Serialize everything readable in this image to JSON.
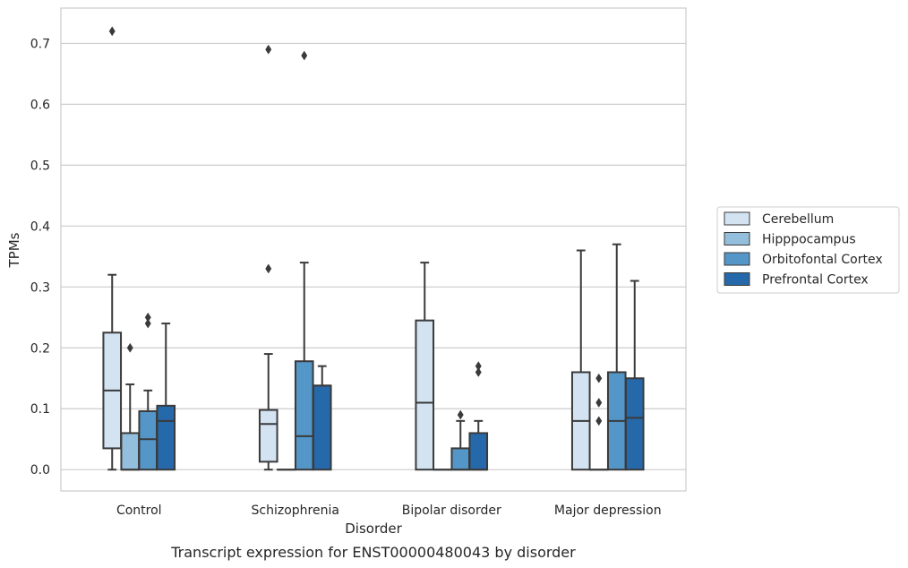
{
  "caption": "Transcript expression for ENST00000480043 by disorder",
  "chart_data": {
    "type": "box",
    "xlabel": "Disorder",
    "ylabel": "TPMs",
    "ylim": [
      -0.035,
      0.758
    ],
    "yticks": [
      0.0,
      0.1,
      0.2,
      0.3,
      0.4,
      0.5,
      0.6,
      0.7
    ],
    "ytick_labels": [
      "0.0",
      "0.1",
      "0.2",
      "0.3",
      "0.4",
      "0.5",
      "0.6",
      "0.7"
    ],
    "grid": "horizontal",
    "legend_position": "right",
    "categories": [
      "Control",
      "Schizophrenia",
      "Bipolar disorder",
      "Major depression"
    ],
    "series": [
      {
        "name": "Cerebellum",
        "color": "#d3e3f2",
        "boxes": [
          {
            "whislo": 0.0,
            "q1": 0.035,
            "med": 0.13,
            "q3": 0.225,
            "whishi": 0.32,
            "fliers": [
              0.72
            ]
          },
          {
            "whislo": 0.0,
            "q1": 0.013,
            "med": 0.075,
            "q3": 0.098,
            "whishi": 0.19,
            "fliers": [
              0.33,
              0.69
            ]
          },
          {
            "whislo": 0.0,
            "q1": 0.0,
            "med": 0.11,
            "q3": 0.245,
            "whishi": 0.34,
            "fliers": []
          },
          {
            "whislo": 0.0,
            "q1": 0.0,
            "med": 0.08,
            "q3": 0.16,
            "whishi": 0.36,
            "fliers": []
          }
        ]
      },
      {
        "name": "Hipppocampus",
        "color": "#94bfdc",
        "boxes": [
          {
            "whislo": 0.0,
            "q1": 0.0,
            "med": 0.0,
            "q3": 0.06,
            "whishi": 0.14,
            "fliers": [
              0.2
            ]
          },
          {
            "whislo": 0.0,
            "q1": 0.0,
            "med": 0.0,
            "q3": 0.0,
            "whishi": 0.0,
            "fliers": []
          },
          {
            "whislo": 0.0,
            "q1": 0.0,
            "med": 0.0,
            "q3": 0.0,
            "whishi": 0.0,
            "fliers": []
          },
          {
            "whislo": 0.0,
            "q1": 0.0,
            "med": 0.0,
            "q3": 0.0,
            "whishi": 0.0,
            "fliers": [
              0.08,
              0.11,
              0.15
            ]
          }
        ]
      },
      {
        "name": "Orbitofontal Cortex",
        "color": "#5496c7",
        "boxes": [
          {
            "whislo": 0.0,
            "q1": 0.0,
            "med": 0.05,
            "q3": 0.096,
            "whishi": 0.13,
            "fliers": [
              0.24,
              0.25
            ]
          },
          {
            "whislo": 0.0,
            "q1": 0.0,
            "med": 0.055,
            "q3": 0.178,
            "whishi": 0.34,
            "fliers": [
              0.68
            ]
          },
          {
            "whislo": 0.0,
            "q1": 0.0,
            "med": 0.0,
            "q3": 0.035,
            "whishi": 0.08,
            "fliers": [
              0.09
            ]
          },
          {
            "whislo": 0.0,
            "q1": 0.0,
            "med": 0.08,
            "q3": 0.16,
            "whishi": 0.37,
            "fliers": []
          }
        ]
      },
      {
        "name": "Prefrontal Cortex",
        "color": "#2669ab",
        "boxes": [
          {
            "whislo": 0.0,
            "q1": 0.0,
            "med": 0.08,
            "q3": 0.105,
            "whishi": 0.24,
            "fliers": []
          },
          {
            "whislo": 0.0,
            "q1": 0.0,
            "med": 0.138,
            "q3": 0.138,
            "whishi": 0.17,
            "fliers": []
          },
          {
            "whislo": 0.0,
            "q1": 0.0,
            "med": 0.0,
            "q3": 0.06,
            "whishi": 0.08,
            "fliers": [
              0.16,
              0.17
            ]
          },
          {
            "whislo": 0.0,
            "q1": 0.0,
            "med": 0.085,
            "q3": 0.15,
            "whishi": 0.31,
            "fliers": []
          }
        ]
      }
    ]
  }
}
